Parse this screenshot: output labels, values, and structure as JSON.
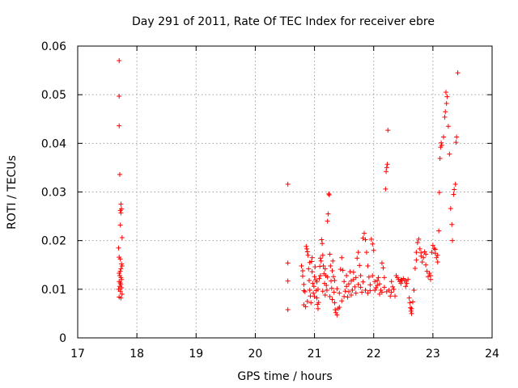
{
  "chart_data": {
    "type": "scatter",
    "title": "Day 291 of 2011, Rate Of TEC Index for receiver ebre",
    "xlabel": "GPS time / hours",
    "ylabel": "ROTI / TECUs",
    "xlim": [
      17,
      24
    ],
    "ylim": [
      0,
      0.06
    ],
    "x_ticks": [
      17,
      18,
      19,
      20,
      21,
      22,
      23,
      24
    ],
    "x_tick_labels": [
      "17",
      "18",
      "19",
      "20",
      "21",
      "22",
      "23",
      "24"
    ],
    "y_ticks": [
      0,
      0.01,
      0.02,
      0.03,
      0.04,
      0.05,
      0.06
    ],
    "y_tick_labels": [
      "0",
      "0.01",
      "0.02",
      "0.03",
      "0.04",
      "0.05",
      "0.06"
    ],
    "grid": true,
    "marker": "+",
    "marker_color": "#ff0000",
    "series": [
      {
        "name": "ROTI",
        "points": [
          [
            17.7,
            0.057
          ],
          [
            17.7,
            0.0497
          ],
          [
            17.7,
            0.0436
          ],
          [
            17.71,
            0.0336
          ],
          [
            17.73,
            0.0275
          ],
          [
            17.74,
            0.0265
          ],
          [
            17.72,
            0.0262
          ],
          [
            17.73,
            0.0257
          ],
          [
            17.72,
            0.0232
          ],
          [
            17.75,
            0.0206
          ],
          [
            17.69,
            0.0185
          ],
          [
            17.7,
            0.0166
          ],
          [
            17.72,
            0.0162
          ],
          [
            17.74,
            0.0152
          ],
          [
            17.75,
            0.0148
          ],
          [
            17.73,
            0.0142
          ],
          [
            17.72,
            0.0137
          ],
          [
            17.7,
            0.0133
          ],
          [
            17.71,
            0.0128
          ],
          [
            17.73,
            0.0124
          ],
          [
            17.74,
            0.012
          ],
          [
            17.7,
            0.0116
          ],
          [
            17.72,
            0.0113
          ],
          [
            17.73,
            0.011
          ],
          [
            17.71,
            0.0106
          ],
          [
            17.74,
            0.0103
          ],
          [
            17.69,
            0.01
          ],
          [
            17.72,
            0.0096
          ],
          [
            17.75,
            0.009
          ],
          [
            17.7,
            0.0084
          ],
          [
            17.73,
            0.0082
          ],
          [
            20.55,
            0.0316
          ],
          [
            20.55,
            0.0154
          ],
          [
            20.55,
            0.0117
          ],
          [
            20.55,
            0.0058
          ],
          [
            20.78,
            0.0148
          ],
          [
            20.8,
            0.0138
          ],
          [
            20.8,
            0.0127
          ],
          [
            20.82,
            0.0097
          ],
          [
            20.82,
            0.0068
          ],
          [
            20.85,
            0.0064
          ],
          [
            20.86,
            0.0188
          ],
          [
            20.87,
            0.0183
          ],
          [
            20.88,
            0.0177
          ],
          [
            20.89,
            0.017
          ],
          [
            20.9,
            0.0142
          ],
          [
            20.91,
            0.0118
          ],
          [
            20.92,
            0.0098
          ],
          [
            20.93,
            0.0086
          ],
          [
            20.94,
            0.0072
          ],
          [
            20.95,
            0.0157
          ],
          [
            20.96,
            0.0136
          ],
          [
            20.97,
            0.0112
          ],
          [
            20.98,
            0.0092
          ],
          [
            20.99,
            0.0106
          ],
          [
            21.0,
            0.0126
          ],
          [
            21.01,
            0.0146
          ],
          [
            21.02,
            0.0119
          ],
          [
            21.03,
            0.0097
          ],
          [
            21.04,
            0.0082
          ],
          [
            21.05,
            0.0069
          ],
          [
            21.06,
            0.006
          ],
          [
            21.07,
            0.0073
          ],
          [
            21.08,
            0.0122
          ],
          [
            21.09,
            0.0147
          ],
          [
            21.1,
            0.0164
          ],
          [
            21.11,
            0.0158
          ],
          [
            21.12,
            0.0202
          ],
          [
            21.13,
            0.0194
          ],
          [
            21.14,
            0.017
          ],
          [
            21.15,
            0.0148
          ],
          [
            21.16,
            0.0132
          ],
          [
            21.17,
            0.0112
          ],
          [
            21.18,
            0.0142
          ],
          [
            21.19,
            0.0128
          ],
          [
            21.2,
            0.0108
          ],
          [
            21.21,
            0.0098
          ],
          [
            21.22,
            0.024
          ],
          [
            21.23,
            0.0255
          ],
          [
            21.24,
            0.0296
          ],
          [
            21.25,
            0.0294
          ],
          [
            21.26,
            0.0172
          ],
          [
            21.27,
            0.0148
          ],
          [
            21.28,
            0.0117
          ],
          [
            21.29,
            0.0102
          ],
          [
            21.3,
            0.0138
          ],
          [
            21.31,
            0.0158
          ],
          [
            21.32,
            0.0126
          ],
          [
            21.33,
            0.0094
          ],
          [
            21.34,
            0.0072
          ],
          [
            21.35,
            0.0058
          ],
          [
            21.36,
            0.0052
          ],
          [
            21.38,
            0.0047
          ],
          [
            21.4,
            0.006
          ],
          [
            21.42,
            0.0063
          ],
          [
            21.44,
            0.0141
          ],
          [
            21.46,
            0.0165
          ],
          [
            21.48,
            0.0139
          ],
          [
            21.5,
            0.0116
          ],
          [
            21.52,
            0.0096
          ],
          [
            21.54,
            0.0106
          ],
          [
            21.56,
            0.0084
          ],
          [
            21.58,
            0.0111
          ],
          [
            21.6,
            0.0136
          ],
          [
            21.62,
            0.0117
          ],
          [
            21.64,
            0.0098
          ],
          [
            21.66,
            0.012
          ],
          [
            21.68,
            0.0105
          ],
          [
            21.7,
            0.0124
          ],
          [
            21.72,
            0.0164
          ],
          [
            21.74,
            0.0176
          ],
          [
            21.76,
            0.0149
          ],
          [
            21.78,
            0.0104
          ],
          [
            21.8,
            0.0094
          ],
          [
            21.82,
            0.0205
          ],
          [
            21.84,
            0.0215
          ],
          [
            21.86,
            0.0202
          ],
          [
            21.88,
            0.0176
          ],
          [
            21.9,
            0.0148
          ],
          [
            21.92,
            0.0125
          ],
          [
            21.94,
            0.0109
          ],
          [
            21.96,
            0.0203
          ],
          [
            21.98,
            0.0193
          ],
          [
            22.0,
            0.018
          ],
          [
            22.02,
            0.0116
          ],
          [
            22.04,
            0.0103
          ],
          [
            22.06,
            0.0118
          ],
          [
            22.08,
            0.0124
          ],
          [
            22.1,
            0.0111
          ],
          [
            22.12,
            0.0098
          ],
          [
            22.14,
            0.0154
          ],
          [
            22.16,
            0.0144
          ],
          [
            22.18,
            0.0124
          ],
          [
            22.2,
            0.0306
          ],
          [
            22.21,
            0.0342
          ],
          [
            22.22,
            0.035
          ],
          [
            22.23,
            0.0357
          ],
          [
            22.24,
            0.0427
          ],
          [
            22.26,
            0.0098
          ],
          [
            22.28,
            0.0086
          ],
          [
            22.3,
            0.0094
          ],
          [
            22.32,
            0.0105
          ],
          [
            22.34,
            0.01
          ],
          [
            22.36,
            0.0086
          ],
          [
            22.4,
            0.0124
          ],
          [
            22.42,
            0.012
          ],
          [
            22.44,
            0.0116
          ],
          [
            22.46,
            0.0112
          ],
          [
            22.48,
            0.0118
          ],
          [
            22.5,
            0.0122
          ],
          [
            22.52,
            0.0118
          ],
          [
            22.54,
            0.0106
          ],
          [
            22.56,
            0.0112
          ],
          [
            22.58,
            0.012
          ],
          [
            22.6,
            0.0082
          ],
          [
            22.61,
            0.0072
          ],
          [
            22.62,
            0.0062
          ],
          [
            22.63,
            0.0055
          ],
          [
            22.64,
            0.005
          ],
          [
            22.66,
            0.0074
          ],
          [
            22.68,
            0.0098
          ],
          [
            22.7,
            0.0143
          ],
          [
            22.72,
            0.0176
          ],
          [
            22.74,
            0.0196
          ],
          [
            22.76,
            0.0203
          ],
          [
            22.78,
            0.0183
          ],
          [
            22.8,
            0.0168
          ],
          [
            22.82,
            0.0156
          ],
          [
            22.84,
            0.0165
          ],
          [
            22.86,
            0.0177
          ],
          [
            22.88,
            0.0172
          ],
          [
            22.9,
            0.0137
          ],
          [
            22.92,
            0.0126
          ],
          [
            22.94,
            0.0133
          ],
          [
            22.96,
            0.012
          ],
          [
            22.98,
            0.0176
          ],
          [
            23.0,
            0.019
          ],
          [
            23.02,
            0.0184
          ],
          [
            23.04,
            0.0174
          ],
          [
            23.06,
            0.0165
          ],
          [
            23.08,
            0.0156
          ],
          [
            23.1,
            0.022
          ],
          [
            23.11,
            0.0299
          ],
          [
            23.12,
            0.0369
          ],
          [
            23.13,
            0.0392
          ],
          [
            23.14,
            0.0401
          ],
          [
            23.15,
            0.0396
          ],
          [
            23.18,
            0.0413
          ],
          [
            23.2,
            0.0454
          ],
          [
            23.21,
            0.0465
          ],
          [
            23.22,
            0.0505
          ],
          [
            23.23,
            0.0482
          ],
          [
            23.24,
            0.0496
          ],
          [
            23.26,
            0.0435
          ],
          [
            23.28,
            0.0378
          ],
          [
            23.3,
            0.0266
          ],
          [
            23.32,
            0.0233
          ],
          [
            23.33,
            0.02
          ],
          [
            23.35,
            0.0295
          ],
          [
            23.36,
            0.0305
          ],
          [
            23.38,
            0.0316
          ],
          [
            23.39,
            0.0402
          ],
          [
            23.4,
            0.0413
          ],
          [
            23.42,
            0.0545
          ],
          [
            20.82,
            0.011
          ],
          [
            20.84,
            0.0095
          ],
          [
            20.88,
            0.0075
          ],
          [
            20.92,
            0.0155
          ],
          [
            20.96,
            0.0165
          ],
          [
            21.0,
            0.0085
          ],
          [
            21.04,
            0.0115
          ],
          [
            21.06,
            0.01
          ],
          [
            21.1,
            0.0128
          ],
          [
            21.14,
            0.0096
          ],
          [
            21.18,
            0.0088
          ],
          [
            21.22,
            0.0125
          ],
          [
            21.26,
            0.0085
          ],
          [
            21.3,
            0.0079
          ],
          [
            21.34,
            0.0118
          ],
          [
            21.38,
            0.0101
          ],
          [
            21.42,
            0.0092
          ],
          [
            21.46,
            0.0076
          ],
          [
            21.5,
            0.0085
          ],
          [
            21.54,
            0.0128
          ],
          [
            21.58,
            0.0095
          ],
          [
            21.62,
            0.0088
          ],
          [
            21.66,
            0.0135
          ],
          [
            21.7,
            0.0092
          ],
          [
            21.74,
            0.011
          ],
          [
            21.78,
            0.0128
          ],
          [
            21.82,
            0.0115
          ],
          [
            21.86,
            0.0098
          ],
          [
            21.9,
            0.0092
          ],
          [
            21.94,
            0.0097
          ],
          [
            21.98,
            0.0128
          ],
          [
            22.02,
            0.0098
          ],
          [
            22.06,
            0.0108
          ],
          [
            22.1,
            0.009
          ],
          [
            22.14,
            0.0094
          ],
          [
            22.18,
            0.0104
          ],
          [
            22.22,
            0.0095
          ],
          [
            22.3,
            0.0116
          ],
          [
            22.38,
            0.0128
          ],
          [
            22.46,
            0.012
          ],
          [
            22.54,
            0.0118
          ],
          [
            22.64,
            0.006
          ],
          [
            22.72,
            0.016
          ],
          [
            22.8,
            0.0175
          ],
          [
            22.88,
            0.015
          ],
          [
            22.96,
            0.0128
          ],
          [
            23.04,
            0.0182
          ],
          [
            23.08,
            0.017
          ]
        ]
      }
    ]
  }
}
